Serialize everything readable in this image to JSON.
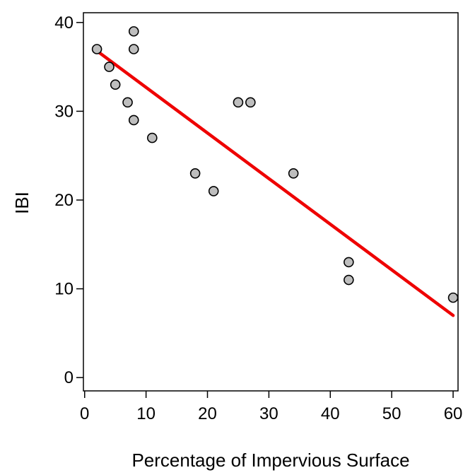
{
  "chart_data": {
    "type": "scatter",
    "title": "",
    "xlabel": "Percentage of Impervious Surface",
    "ylabel": "IBI",
    "xlim": [
      -0.2,
      60.8
    ],
    "ylim": [
      -1.5,
      41.1
    ],
    "xticks": [
      0,
      10,
      20,
      30,
      40,
      50,
      60
    ],
    "yticks": [
      0,
      10,
      20,
      30,
      40
    ],
    "grid": false,
    "legend": "none",
    "points": [
      {
        "x": 2,
        "y": 37
      },
      {
        "x": 4,
        "y": 35
      },
      {
        "x": 5,
        "y": 33
      },
      {
        "x": 7,
        "y": 31
      },
      {
        "x": 8,
        "y": 29
      },
      {
        "x": 8,
        "y": 37
      },
      {
        "x": 8,
        "y": 39
      },
      {
        "x": 11,
        "y": 27
      },
      {
        "x": 18,
        "y": 23
      },
      {
        "x": 21,
        "y": 21
      },
      {
        "x": 25,
        "y": 31
      },
      {
        "x": 27,
        "y": 31
      },
      {
        "x": 34,
        "y": 23
      },
      {
        "x": 43,
        "y": 13
      },
      {
        "x": 43,
        "y": 11
      },
      {
        "x": 60,
        "y": 9
      }
    ],
    "fit_line": {
      "x": [
        2,
        60
      ],
      "y": [
        36.8,
        7.0
      ]
    },
    "colors": {
      "point_fill": "#bebebe",
      "point_stroke": "#000000",
      "fit_line": "#ee0000",
      "axis": "#000000"
    }
  }
}
